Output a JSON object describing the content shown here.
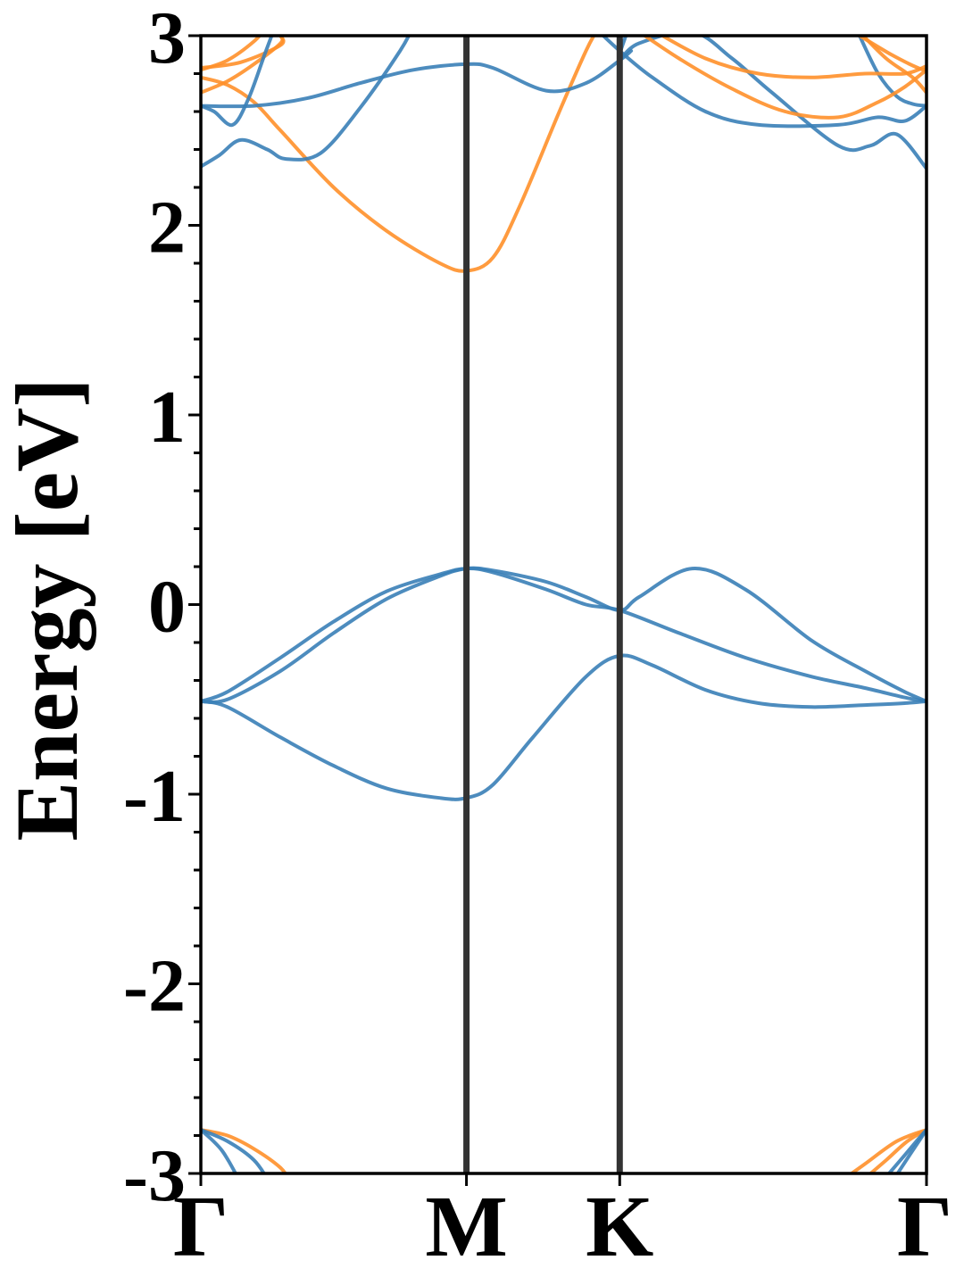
{
  "chart_data": {
    "type": "line",
    "title": "",
    "xlabel": "",
    "ylabel": "Energy [eV]",
    "ylim": [
      -3,
      3
    ],
    "yticks": [
      "3",
      "2",
      "1",
      "0",
      "-1",
      "-2",
      "-3"
    ],
    "ytick_values": [
      3,
      2,
      1,
      0,
      -1,
      -2,
      -3
    ],
    "xlim": [
      0,
      2.732
    ],
    "xticks": [
      {
        "label": "Γ",
        "k": 0
      },
      {
        "label": "M",
        "k": 1.0
      },
      {
        "label": "K",
        "k": 1.577
      },
      {
        "label": "Γ",
        "k": 2.732
      }
    ],
    "vertical_lines_at_k": [
      1.0,
      1.577
    ],
    "grid": false,
    "legend": "none",
    "colors": {
      "spin_up": "#3a80b7",
      "spin_down": "#ff902a",
      "high_symmetry_line": "#333333",
      "axes": "#000000"
    },
    "series": [
      {
        "color_key": "spin_up",
        "x": [
          0,
          0.1,
          0.3,
          0.5,
          0.7,
          0.9,
          1.0,
          1.1,
          1.3,
          1.45,
          1.577,
          1.65,
          1.85,
          2.05,
          2.3,
          2.5,
          2.65,
          2.732
        ],
        "y": [
          -0.51,
          -0.5,
          -0.35,
          -0.15,
          0.03,
          0.15,
          0.19,
          0.18,
          0.12,
          0.04,
          -0.03,
          0.04,
          0.19,
          0.08,
          -0.19,
          -0.35,
          -0.46,
          -0.51
        ]
      },
      {
        "color_key": "spin_up",
        "x": [
          0,
          0.1,
          0.3,
          0.5,
          0.7,
          0.9,
          1.0,
          1.1,
          1.3,
          1.45,
          1.577,
          1.8,
          2.05,
          2.3,
          2.5,
          2.65,
          2.732
        ],
        "y": [
          -0.51,
          -0.46,
          -0.28,
          -0.09,
          0.07,
          0.16,
          0.19,
          0.17,
          0.08,
          0.0,
          -0.03,
          -0.15,
          -0.28,
          -0.38,
          -0.44,
          -0.49,
          -0.51
        ]
      },
      {
        "color_key": "spin_up",
        "x": [
          0,
          0.1,
          0.3,
          0.5,
          0.7,
          0.9,
          1.0,
          1.1,
          1.25,
          1.45,
          1.577,
          1.7,
          1.9,
          2.1,
          2.3,
          2.5,
          2.65,
          2.732
        ],
        "y": [
          -0.51,
          -0.54,
          -0.7,
          -0.85,
          -0.97,
          -1.02,
          -1.02,
          -0.95,
          -0.7,
          -0.38,
          -0.27,
          -0.32,
          -0.45,
          -0.52,
          -0.54,
          -0.53,
          -0.52,
          -0.51
        ]
      },
      {
        "color_key": "spin_down",
        "x": [
          0,
          0.1,
          0.2,
          0.3,
          0.5,
          0.7,
          0.9,
          1.0,
          1.1,
          1.2,
          1.35,
          1.45,
          1.5
        ],
        "y": [
          2.78,
          2.74,
          2.65,
          2.5,
          2.2,
          1.97,
          1.8,
          1.76,
          1.83,
          2.1,
          2.6,
          2.92,
          3.05
        ]
      },
      {
        "color_key": "spin_down",
        "x": [
          0,
          0.1,
          0.2,
          0.25
        ],
        "y": [
          2.82,
          2.87,
          2.97,
          3.05
        ]
      },
      {
        "color_key": "spin_down",
        "x": [
          0,
          0.1,
          0.2,
          0.3,
          0.3
        ],
        "y": [
          2.7,
          2.76,
          2.85,
          2.96,
          3.0
        ]
      },
      {
        "color_key": "spin_down",
        "x": [
          0,
          0.15,
          0.3,
          0.3
        ],
        "y": [
          2.83,
          2.86,
          2.95,
          3.0
        ]
      },
      {
        "color_key": "spin_up",
        "x": [
          0,
          0.2,
          0.4,
          0.6,
          0.8,
          1.0,
          1.1,
          1.3,
          1.45,
          1.577,
          1.62
        ],
        "y": [
          2.63,
          2.63,
          2.67,
          2.75,
          2.82,
          2.85,
          2.83,
          2.71,
          2.75,
          2.87,
          2.92
        ]
      },
      {
        "color_key": "spin_up",
        "x": [
          0,
          0.07,
          0.15,
          0.25,
          0.32,
          0.45,
          0.6,
          0.75,
          0.8
        ],
        "y": [
          2.31,
          2.37,
          2.45,
          2.4,
          2.35,
          2.38,
          2.62,
          2.92,
          3.05
        ]
      },
      {
        "color_key": "spin_up",
        "x": [
          0,
          0.05,
          0.12,
          0.18,
          0.24,
          0.28
        ],
        "y": [
          2.63,
          2.6,
          2.53,
          2.67,
          2.9,
          3.05
        ]
      },
      {
        "color_key": "spin_up",
        "x": [
          1.5,
          1.577,
          1.7,
          1.9,
          2.1,
          2.4,
          2.55,
          2.65,
          2.732
        ],
        "y": [
          3.02,
          2.92,
          2.78,
          2.6,
          2.53,
          2.53,
          2.57,
          2.55,
          2.63
        ]
      },
      {
        "color_key": "spin_up",
        "x": [
          1.6,
          1.577,
          1.65,
          1.85,
          2.0,
          2.15,
          2.4,
          2.52,
          2.62,
          2.732
        ],
        "y": [
          3.0,
          2.88,
          2.96,
          3.02,
          2.88,
          2.7,
          2.42,
          2.42,
          2.48,
          2.3
        ]
      },
      {
        "color_key": "spin_up",
        "x": [
          2.48,
          2.55,
          2.62,
          2.68,
          2.732
        ],
        "y": [
          3.0,
          2.8,
          2.68,
          2.64,
          2.63
        ]
      },
      {
        "color_key": "spin_down",
        "x": [
          1.62,
          1.8,
          2.0,
          2.2,
          2.4,
          2.55,
          2.65,
          2.732
        ],
        "y": [
          3.05,
          2.88,
          2.72,
          2.6,
          2.57,
          2.65,
          2.73,
          2.82
        ]
      },
      {
        "color_key": "spin_down",
        "x": [
          1.7,
          1.9,
          2.1,
          2.3,
          2.5,
          2.65,
          2.732
        ],
        "y": [
          3.03,
          2.88,
          2.8,
          2.78,
          2.8,
          2.8,
          2.84
        ]
      },
      {
        "color_key": "spin_down",
        "x": [
          2.48,
          2.58,
          2.68,
          2.732
        ],
        "y": [
          3.02,
          2.88,
          2.78,
          2.7
        ]
      },
      {
        "color_key": "spin_down",
        "x": [
          2.48,
          2.6,
          2.7,
          2.732
        ],
        "y": [
          3.0,
          2.9,
          2.83,
          2.82
        ]
      },
      {
        "color_key": "spin_down",
        "x": [
          0,
          0.1,
          0.2,
          0.3,
          0.34
        ],
        "y": [
          -2.77,
          -2.8,
          -2.87,
          -2.97,
          -3.05
        ]
      },
      {
        "color_key": "spin_up",
        "x": [
          0,
          0.1,
          0.2,
          0.26
        ],
        "y": [
          -2.77,
          -2.83,
          -2.93,
          -3.05
        ]
      },
      {
        "color_key": "spin_up",
        "x": [
          0,
          0.08,
          0.15
        ],
        "y": [
          -2.77,
          -2.88,
          -3.05
        ]
      },
      {
        "color_key": "spin_down",
        "x": [
          2.4,
          2.5,
          2.62,
          2.732
        ],
        "y": [
          -3.05,
          -2.95,
          -2.83,
          -2.77
        ]
      },
      {
        "color_key": "spin_down",
        "x": [
          2.48,
          2.58,
          2.66,
          2.732
        ],
        "y": [
          -3.05,
          -2.93,
          -2.83,
          -2.77
        ]
      },
      {
        "color_key": "spin_up",
        "x": [
          2.56,
          2.64,
          2.7,
          2.732
        ],
        "y": [
          -3.05,
          -2.92,
          -2.82,
          -2.77
        ]
      },
      {
        "color_key": "spin_up",
        "x": [
          2.6,
          2.67,
          2.732
        ],
        "y": [
          -3.05,
          -2.9,
          -2.77
        ]
      }
    ]
  }
}
